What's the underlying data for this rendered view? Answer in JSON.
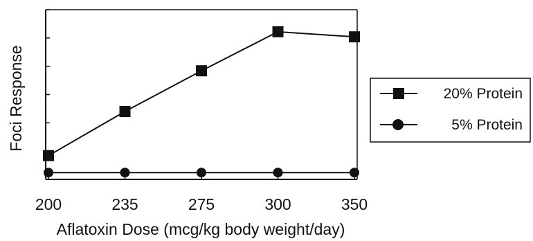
{
  "chart_data": {
    "type": "line",
    "title": "",
    "xlabel": "Aflatoxin Dose (mcg/kg body weight/day)",
    "ylabel": "Foci Response",
    "categories": [
      "200",
      "235",
      "275",
      "300",
      "350"
    ],
    "ylim": [
      0,
      100
    ],
    "y_tick_labels": false,
    "grid": false,
    "legend_position": "right",
    "series": [
      {
        "name": "20% Protein",
        "marker": "square",
        "values": [
          14,
          40,
          64,
          87,
          84
        ]
      },
      {
        "name": "5% Protein",
        "marker": "circle",
        "values": [
          4,
          4,
          4,
          4,
          4
        ]
      }
    ],
    "colors": {
      "line": "#111111",
      "marker": "#111111",
      "axis": "#111111"
    }
  }
}
